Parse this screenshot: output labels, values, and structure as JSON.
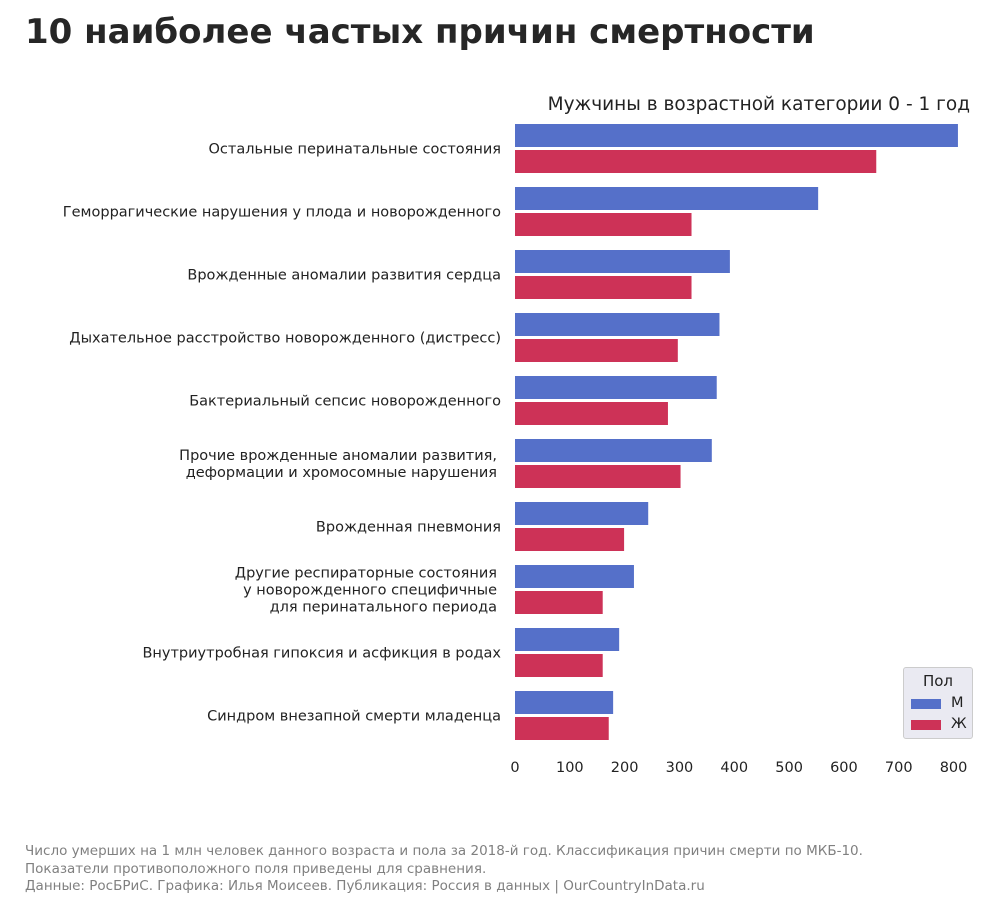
{
  "title": "10 наиболее частых причин смертности",
  "footnote": [
    "Число умерших на 1 млн человек данного возраста и пола за 2018-й год. Классификация причин смерти по МКБ-10.",
    "Показатели противоположного поля приведены для сравнения.",
    "Данные: РосБРиС. Графика: Илья Моисеев. Публикация: Россия в данных | OurCountryInData.ru"
  ],
  "colors": {
    "male": "#5570c9",
    "female": "#cd3257"
  },
  "chart_data": {
    "type": "bar",
    "orientation": "horizontal",
    "title": "Мужчины в возрастной категории 0 - 1 год",
    "categories": [
      [
        "Остальные перинатальные состояния"
      ],
      [
        "Геморрагические нарушения у плода и новорожденного"
      ],
      [
        "Врожденные аномалии развития сердца"
      ],
      [
        "Дыхательное расстройство новорожденного (дистресс)"
      ],
      [
        "Бактериальный сепсис новорожденного"
      ],
      [
        "Прочие врожденные аномалии развития,",
        "деформации и хромосомные нарушения"
      ],
      [
        "Врожденная пневмония"
      ],
      [
        "Другие респираторные состояния",
        "у новорожденного специфичные",
        "для перинатального периода"
      ],
      [
        "Внутриутробная гипоксия и асфикция в родах"
      ],
      [
        "Синдром внезапной смерти младенца"
      ]
    ],
    "series": [
      {
        "name": "М",
        "color": "#5570c9",
        "values": [
          808,
          553,
          392,
          373,
          368,
          359,
          243,
          217,
          190,
          179
        ]
      },
      {
        "name": "Ж",
        "color": "#cd3257",
        "values": [
          659,
          322,
          322,
          297,
          279,
          302,
          199,
          160,
          160,
          171
        ]
      }
    ],
    "xlim": [
      0,
      830
    ],
    "xticks": [
      0,
      100,
      200,
      300,
      400,
      500,
      600,
      700,
      800
    ],
    "xlabel": "",
    "ylabel": "",
    "grid": false,
    "legend": {
      "title": "Пол",
      "position": "bottom-right"
    }
  }
}
